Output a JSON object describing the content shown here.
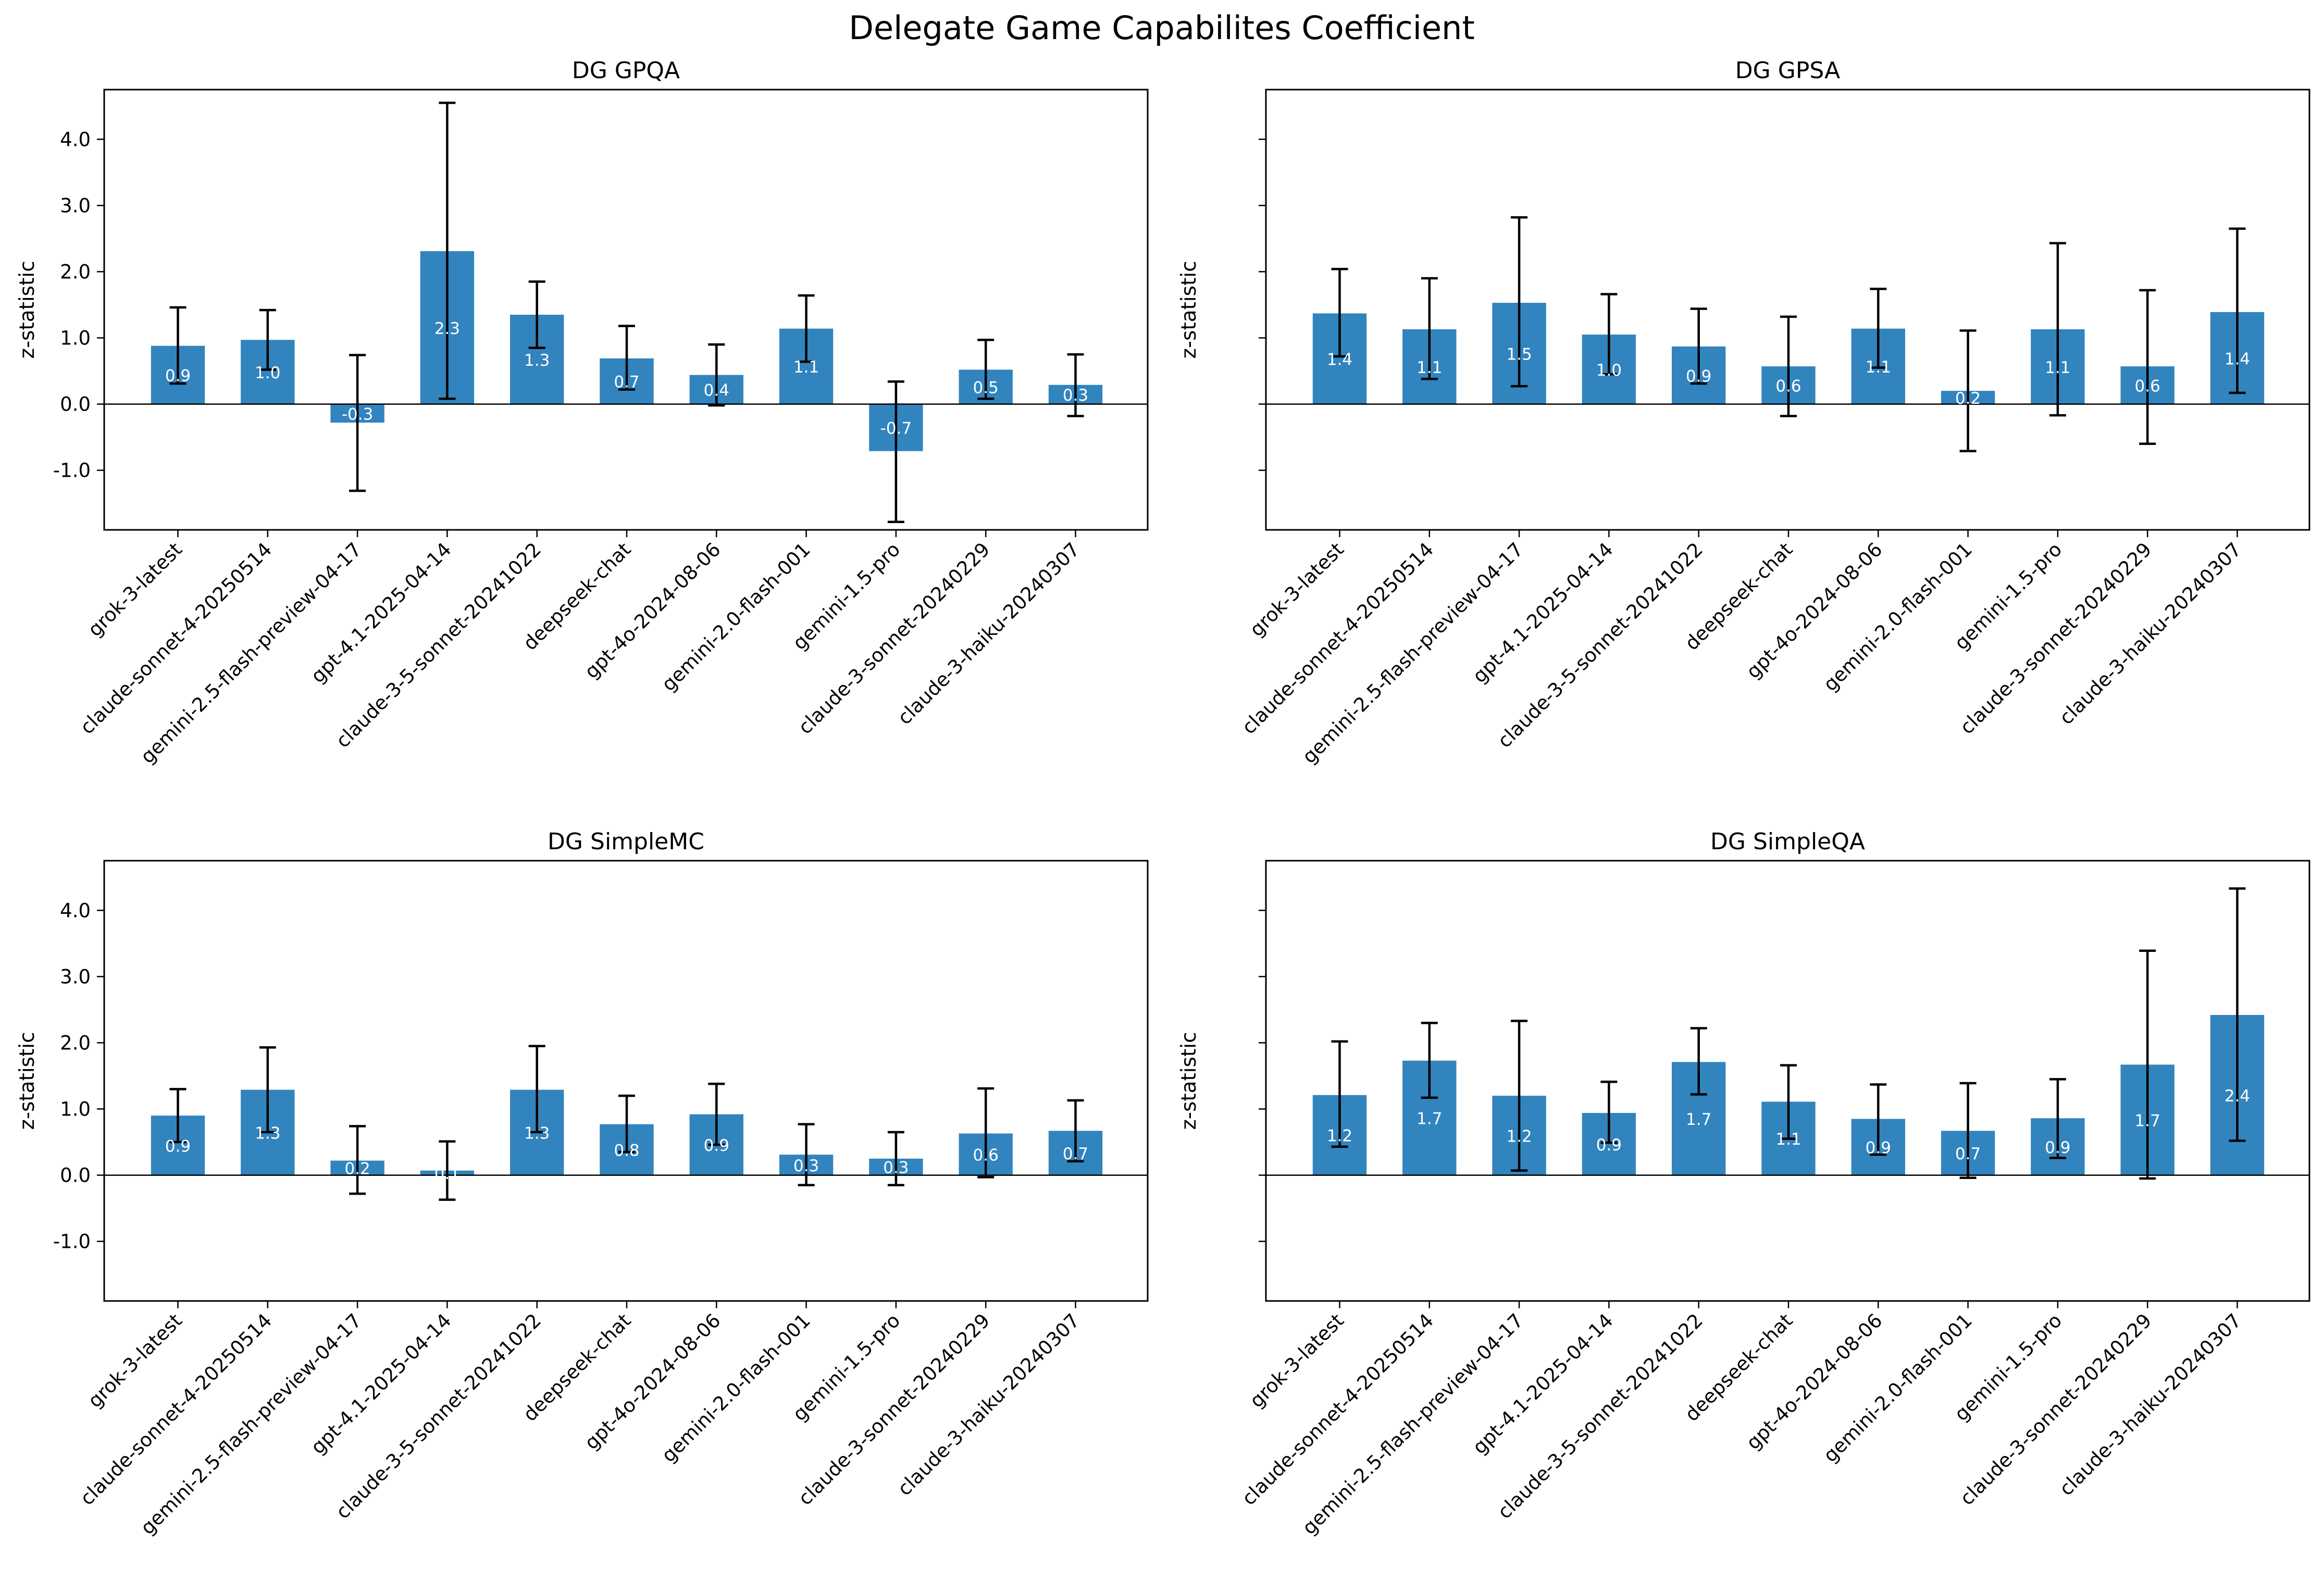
{
  "title": "Delegate Game Capabilites Coefficient",
  "colors": {
    "bar": "#3284be",
    "bar_label": "#ffffff",
    "axis": "#000000",
    "error_bar": "#000000"
  },
  "chart_data": [
    {
      "type": "bar",
      "title": "DG GPQA",
      "ylabel": "z-statistic",
      "show_ytick_labels": true,
      "ylim": [
        -1.9,
        4.75
      ],
      "yticks": [
        -1.0,
        0.0,
        1.0,
        2.0,
        3.0,
        4.0
      ],
      "categories": [
        "grok-3-latest",
        "claude-sonnet-4-20250514",
        "gemini-2.5-flash-preview-04-17",
        "gpt-4.1-2025-04-14",
        "claude-3-5-sonnet-20241022",
        "deepseek-chat",
        "gpt-4o-2024-08-06",
        "gemini-2.0-flash-001",
        "gemini-1.5-pro",
        "claude-3-sonnet-20240229",
        "claude-3-haiku-20240307"
      ],
      "values": [
        0.88,
        0.97,
        -0.28,
        2.31,
        1.35,
        0.69,
        0.44,
        1.14,
        -0.71,
        0.52,
        0.29
      ],
      "labels": [
        "0.9",
        "1.0",
        "-0.3",
        "2.3",
        "1.3",
        "0.7",
        "0.4",
        "1.1",
        "-0.7",
        "0.5",
        "0.3"
      ],
      "err_low": [
        0.31,
        0.52,
        -1.31,
        0.08,
        0.85,
        0.22,
        -0.02,
        0.64,
        -1.78,
        0.08,
        -0.18
      ],
      "err_high": [
        1.46,
        1.42,
        0.74,
        4.55,
        1.85,
        1.18,
        0.9,
        1.64,
        0.34,
        0.97,
        0.75
      ],
      "grid": false
    },
    {
      "type": "bar",
      "title": "DG GPSA",
      "ylabel": "z-statistic",
      "show_ytick_labels": false,
      "ylim": [
        -1.9,
        4.75
      ],
      "yticks": [
        -1.0,
        0.0,
        1.0,
        2.0,
        3.0,
        4.0
      ],
      "categories": [
        "grok-3-latest",
        "claude-sonnet-4-20250514",
        "gemini-2.5-flash-preview-04-17",
        "gpt-4.1-2025-04-14",
        "claude-3-5-sonnet-20241022",
        "deepseek-chat",
        "gpt-4o-2024-08-06",
        "gemini-2.0-flash-001",
        "gemini-1.5-pro",
        "claude-3-sonnet-20240229",
        "claude-3-haiku-20240307"
      ],
      "values": [
        1.37,
        1.13,
        1.53,
        1.05,
        0.87,
        0.57,
        1.14,
        0.2,
        1.13,
        0.57,
        1.39
      ],
      "labels": [
        "1.4",
        "1.1",
        "1.5",
        "1.0",
        "0.9",
        "0.6",
        "1.1",
        "0.2",
        "1.1",
        "0.6",
        "1.4"
      ],
      "err_low": [
        0.72,
        0.38,
        0.27,
        0.45,
        0.31,
        -0.18,
        0.55,
        -0.71,
        -0.17,
        -0.6,
        0.17
      ],
      "err_high": [
        2.04,
        1.9,
        2.82,
        1.66,
        1.44,
        1.32,
        1.74,
        1.11,
        2.43,
        1.72,
        2.65
      ],
      "grid": false
    },
    {
      "type": "bar",
      "title": "DG SimpleMC",
      "ylabel": "z-statistic",
      "show_ytick_labels": true,
      "ylim": [
        -1.9,
        4.75
      ],
      "yticks": [
        -1.0,
        0.0,
        1.0,
        2.0,
        3.0,
        4.0
      ],
      "categories": [
        "grok-3-latest",
        "claude-sonnet-4-20250514",
        "gemini-2.5-flash-preview-04-17",
        "gpt-4.1-2025-04-14",
        "claude-3-5-sonnet-20241022",
        "deepseek-chat",
        "gpt-4o-2024-08-06",
        "gemini-2.0-flash-001",
        "gemini-1.5-pro",
        "claude-3-sonnet-20240229",
        "claude-3-haiku-20240307"
      ],
      "values": [
        0.9,
        1.29,
        0.22,
        0.07,
        1.29,
        0.77,
        0.92,
        0.31,
        0.25,
        0.63,
        0.67
      ],
      "labels": [
        "0.9",
        "1.3",
        "0.2",
        "0.1",
        "1.3",
        "0.8",
        "0.9",
        "0.3",
        "0.3",
        "0.6",
        "0.7"
      ],
      "err_low": [
        0.5,
        0.65,
        -0.28,
        -0.37,
        0.65,
        0.35,
        0.46,
        -0.15,
        -0.15,
        -0.03,
        0.21
      ],
      "err_high": [
        1.3,
        1.93,
        0.74,
        0.51,
        1.95,
        1.2,
        1.38,
        0.77,
        0.65,
        1.31,
        1.13
      ],
      "grid": false
    },
    {
      "type": "bar",
      "title": "DG SimpleQA",
      "ylabel": "z-statistic",
      "show_ytick_labels": false,
      "ylim": [
        -1.9,
        4.75
      ],
      "yticks": [
        -1.0,
        0.0,
        1.0,
        2.0,
        3.0,
        4.0
      ],
      "categories": [
        "grok-3-latest",
        "claude-sonnet-4-20250514",
        "gemini-2.5-flash-preview-04-17",
        "gpt-4.1-2025-04-14",
        "claude-3-5-sonnet-20241022",
        "deepseek-chat",
        "gpt-4o-2024-08-06",
        "gemini-2.0-flash-001",
        "gemini-1.5-pro",
        "claude-3-sonnet-20240229",
        "claude-3-haiku-20240307"
      ],
      "values": [
        1.21,
        1.73,
        1.2,
        0.94,
        1.71,
        1.11,
        0.85,
        0.67,
        0.86,
        1.67,
        2.42
      ],
      "labels": [
        "1.2",
        "1.7",
        "1.2",
        "0.9",
        "1.7",
        "1.1",
        "0.9",
        "0.7",
        "0.9",
        "1.7",
        "2.4"
      ],
      "err_low": [
        0.43,
        1.17,
        0.07,
        0.49,
        1.22,
        0.55,
        0.31,
        -0.04,
        0.26,
        -0.05,
        0.52
      ],
      "err_high": [
        2.02,
        2.3,
        2.33,
        1.41,
        2.22,
        1.66,
        1.37,
        1.39,
        1.45,
        3.39,
        4.33
      ],
      "grid": false
    }
  ]
}
